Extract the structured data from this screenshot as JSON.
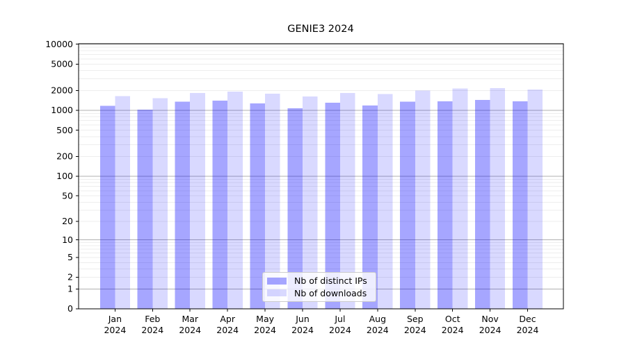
{
  "title": "GENIE3 2024",
  "chart_data": {
    "type": "bar",
    "title": "GENIE3 2024",
    "categories": [
      "Jan",
      "Feb",
      "Mar",
      "Apr",
      "May",
      "Jun",
      "Jul",
      "Aug",
      "Sep",
      "Oct",
      "Nov",
      "Dec"
    ],
    "category_year": "2024",
    "series": [
      {
        "name": "Nb of distinct IPs",
        "values": [
          1170,
          1020,
          1350,
          1400,
          1270,
          1080,
          1310,
          1190,
          1350,
          1370,
          1430,
          1370
        ]
      },
      {
        "name": "Nb of downloads",
        "values": [
          1650,
          1530,
          1830,
          1930,
          1790,
          1620,
          1840,
          1770,
          1980,
          2130,
          2170,
          2070
        ]
      }
    ],
    "xlabel": "",
    "ylabel": "",
    "yscale": "symlog (log10 of 1+value)",
    "yticks": [
      0,
      1,
      2,
      5,
      10,
      20,
      50,
      100,
      200,
      500,
      1000,
      2000,
      5000,
      10000
    ],
    "ylim": [
      0,
      10000
    ],
    "grid": "horizontal, major and minor",
    "legend_position": "lower center"
  },
  "colors": {
    "bar_distinct_ips": "rgba(0,0,255,0.35)",
    "bar_downloads": "rgba(0,0,255,0.15)",
    "bar_distinct_ips_flat": "#a6a6ff",
    "bar_downloads_flat": "#d9d9ff",
    "grid_major": "#b0b0b0",
    "grid_minor": "#ededed",
    "axis": "#000000",
    "text": "#000000",
    "legend_border": "#cccccc"
  }
}
